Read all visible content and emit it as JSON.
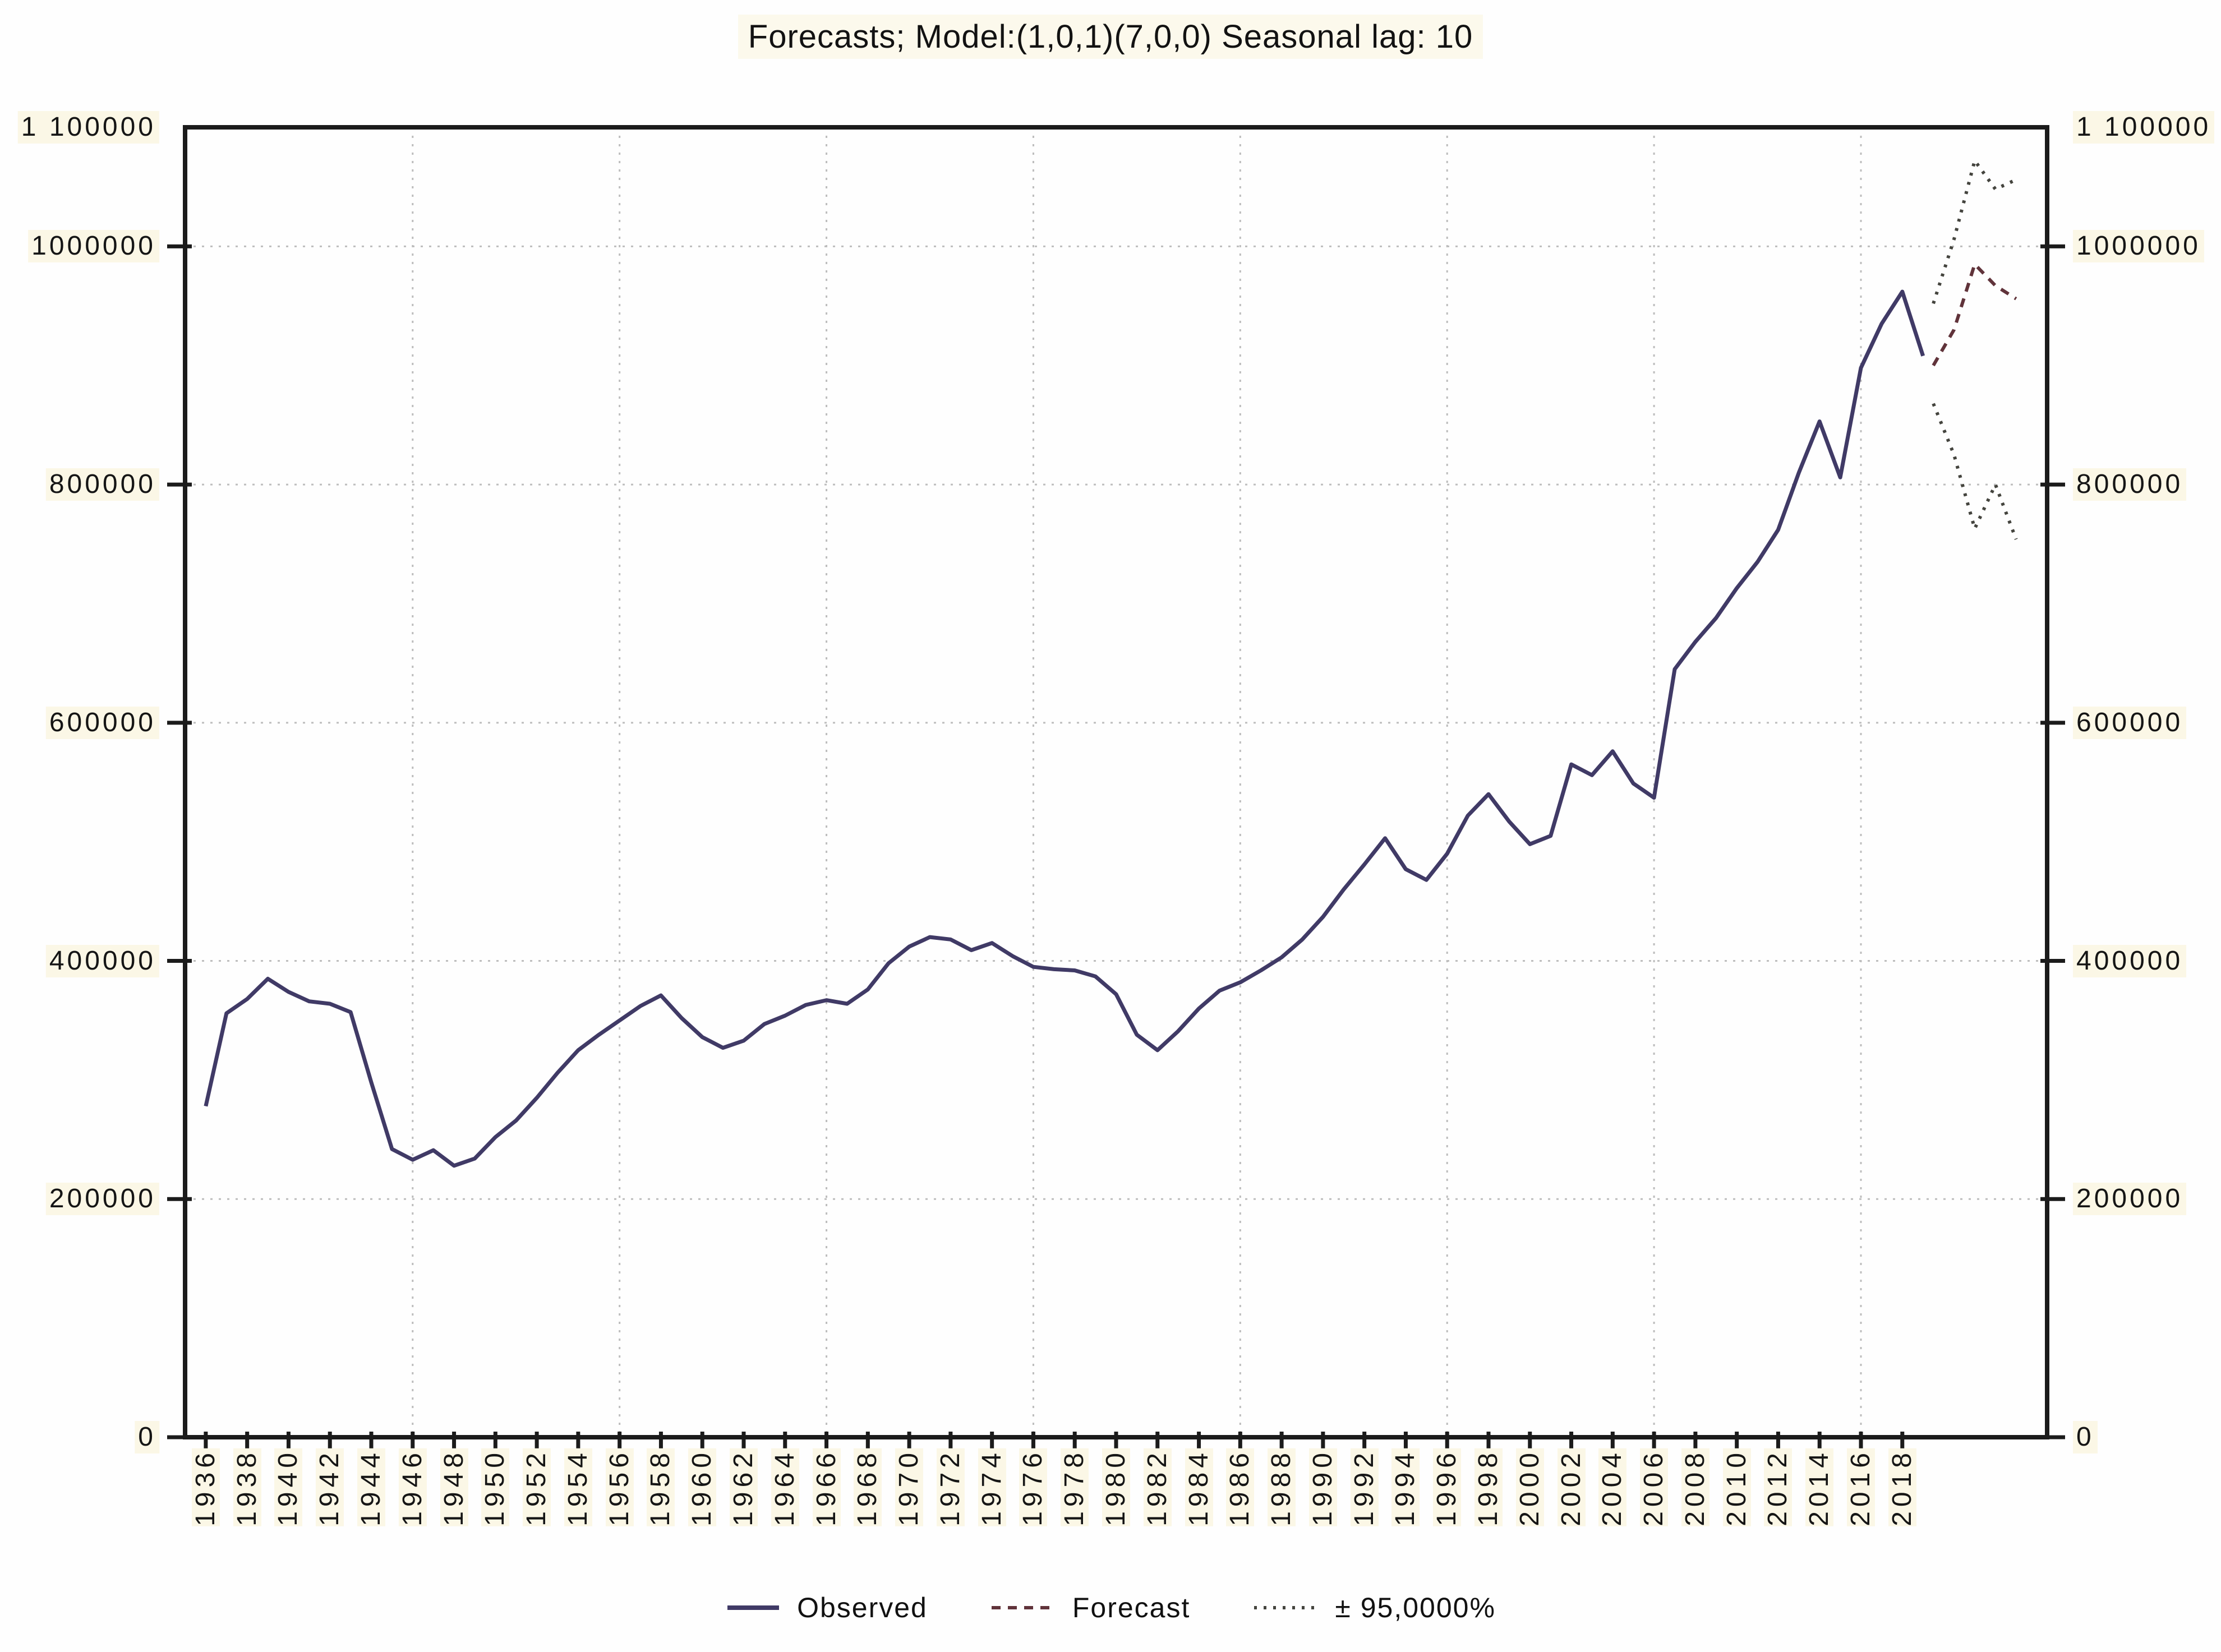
{
  "title": "Forecasts; Model:(1,0,1)(7,0,0) Seasonal lag: 10",
  "legend": {
    "items": [
      {
        "label": "Observed",
        "color": "#403a66",
        "dash": "none",
        "stroke_width": 8
      },
      {
        "label": "Forecast",
        "color": "#60333a",
        "dash": "16 13",
        "stroke_width": 6
      },
      {
        "label": "± 95,0000%",
        "color": "#44443e",
        "dash": "5 12",
        "stroke_width": 6
      }
    ]
  },
  "colors": {
    "observed": "#403a66",
    "forecast": "#60333a",
    "interval": "#44443e",
    "gridline": "#bdbdbd",
    "axis": "#1b1b1b",
    "text": "#151515",
    "label_background": "#fbf7e6"
  },
  "chart_data": {
    "type": "line",
    "title": "Forecasts; Model:(1,0,1)(7,0,0) Seasonal lag: 10",
    "xlabel": "",
    "ylabel": "",
    "grid": "dotted",
    "legend_position": "bottom",
    "x_axis": {
      "range": [
        1935,
        2025
      ],
      "tick_years": [
        1936,
        1938,
        1940,
        1942,
        1944,
        1946,
        1948,
        1950,
        1952,
        1954,
        1956,
        1958,
        1960,
        1962,
        1964,
        1966,
        1968,
        1970,
        1972,
        1974,
        1976,
        1978,
        1980,
        1982,
        1984,
        1986,
        1988,
        1990,
        1992,
        1994,
        1996,
        1998,
        2000,
        2002,
        2004,
        2006,
        2008,
        2010,
        2012,
        2014,
        2016,
        2018
      ],
      "tick_labels": [
        "1936",
        "1938",
        "1940",
        "1942",
        "1944",
        "1946",
        "1948",
        "1950",
        "1952",
        "1954",
        "1956",
        "1958",
        "1960",
        "1962",
        "1964",
        "1966",
        "1968",
        "1970",
        "1972",
        "1974",
        "1976",
        "1978",
        "1980",
        "1982",
        "1984",
        "1986",
        "1988",
        "1990",
        "1992",
        "1994",
        "1996",
        "1998",
        "2000",
        "2002",
        "2004",
        "2006",
        "2008",
        "2010",
        "2012",
        "2014",
        "2016",
        "2018"
      ],
      "gridline_years": [
        1946,
        1956,
        1966,
        1976,
        1986,
        1996,
        2006,
        2016
      ]
    },
    "y_axis": {
      "range": [
        0,
        1100000
      ],
      "ticks": [
        {
          "value": 0,
          "label": "0"
        },
        {
          "value": 200000,
          "label": "200000"
        },
        {
          "value": 400000,
          "label": "400000"
        },
        {
          "value": 600000,
          "label": "600000"
        },
        {
          "value": 800000,
          "label": "800000"
        },
        {
          "value": 1000000,
          "label": "1000000"
        },
        {
          "value": 1100000,
          "label": "1 100000"
        }
      ],
      "gridline_values": [
        200000,
        400000,
        600000,
        800000,
        1000000
      ]
    },
    "series": [
      {
        "name": "Observed",
        "style": "solid",
        "color": "#403a66",
        "x_start_year": 1936,
        "annual_values": [
          278000,
          356000,
          368000,
          385000,
          374000,
          366000,
          364000,
          357000,
          298000,
          242000,
          233000,
          241000,
          228000,
          234000,
          252000,
          266000,
          285000,
          306000,
          325000,
          338000,
          350000,
          362000,
          371000,
          352000,
          336000,
          327000,
          333000,
          347000,
          354000,
          363000,
          367000,
          364000,
          376000,
          398000,
          412000,
          420000,
          418000,
          409000,
          415000,
          404000,
          395000,
          393000,
          392000,
          387000,
          372000,
          338000,
          325000,
          341000,
          360000,
          375000,
          382000,
          392000,
          403000,
          418000,
          437000,
          460000,
          481000,
          503000,
          477000,
          468000,
          490000,
          522000,
          540000,
          517000,
          498000,
          505000,
          565000,
          556000,
          576000,
          549000,
          537000,
          645000,
          668000,
          688000,
          713000,
          735000,
          762000,
          810000,
          853000,
          806000,
          898000,
          935000,
          962000,
          908000
        ]
      },
      {
        "name": "Forecast",
        "style": "dashed",
        "color": "#60333a",
        "x": [
          2019.5,
          2020.5,
          2021.5,
          2022.5,
          2023.5
        ],
        "values": [
          900000,
          930000,
          985000,
          967000,
          956000
        ]
      },
      {
        "name": "+95% confidence limit",
        "style": "dotted",
        "color": "#44443e",
        "x": [
          2019.5,
          2020.5,
          2021.5,
          2022.5,
          2023.5
        ],
        "values": [
          952000,
          1006000,
          1072000,
          1048000,
          1056000
        ]
      },
      {
        "name": "-95% confidence limit",
        "style": "dotted",
        "color": "#44443e",
        "x": [
          2019.5,
          2020.5,
          2021.5,
          2022.5,
          2023.5
        ],
        "values": [
          868000,
          825000,
          763000,
          800000,
          754000
        ]
      }
    ]
  }
}
